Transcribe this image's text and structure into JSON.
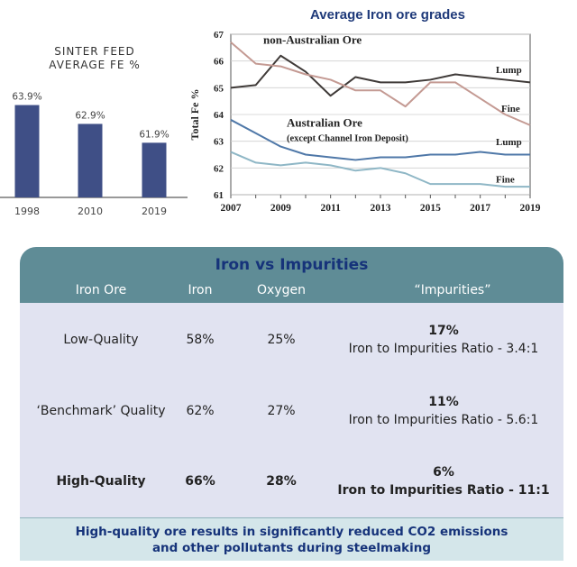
{
  "bar_chart": {
    "title_line1": "SINTER FEED",
    "title_line2": "AVERAGE FE %",
    "bar_color": "#3f4f86"
  },
  "line_chart": {
    "title": "Average Iron ore grades",
    "ylabel": "Total Fe %",
    "annotations": {
      "non_australian": "non-Australian Ore",
      "australian": "Australian Ore",
      "australian_sub": "(except Channel Iron Deposit)",
      "lump_top": "Lump",
      "fine_top": "Fine",
      "lump_bottom": "Lump",
      "fine_bottom": "Fine"
    }
  },
  "chart_data": [
    {
      "type": "bar",
      "title": "SINTER FEED AVERAGE FE %",
      "categories": [
        "1998",
        "2010",
        "2019"
      ],
      "values": [
        63.9,
        62.9,
        61.9
      ],
      "value_labels": [
        "63.9%",
        "62.9%",
        "61.9%"
      ],
      "ylim": [
        59.0,
        64.5
      ]
    },
    {
      "type": "line",
      "title": "Average Iron ore grades",
      "ylabel": "Total Fe %",
      "ylim": [
        61,
        67
      ],
      "yticks": [
        "61",
        "62",
        "63",
        "64",
        "65",
        "66",
        "67"
      ],
      "xticks": [
        "2007",
        "2009",
        "2011",
        "2013",
        "2015",
        "2017",
        "2019"
      ],
      "x": [
        2007,
        2008,
        2009,
        2010,
        2011,
        2012,
        2013,
        2014,
        2015,
        2016,
        2017,
        2018,
        2019
      ],
      "series": [
        {
          "name": "non-Australian Ore Lump",
          "color": "#3f3a38",
          "values": [
            65.0,
            65.1,
            66.2,
            65.6,
            64.7,
            65.4,
            65.2,
            65.2,
            65.3,
            65.5,
            65.4,
            65.3,
            65.2
          ]
        },
        {
          "name": "non-Australian Ore Fine",
          "color": "#c49a93",
          "values": [
            66.7,
            65.9,
            65.8,
            65.5,
            65.3,
            64.9,
            64.9,
            64.3,
            65.2,
            65.2,
            64.6,
            64.0,
            63.6
          ]
        },
        {
          "name": "Australian Ore Lump",
          "color": "#4f78a8",
          "values": [
            63.8,
            63.3,
            62.8,
            62.5,
            62.4,
            62.3,
            62.4,
            62.4,
            62.5,
            62.5,
            62.6,
            62.5,
            62.5
          ]
        },
        {
          "name": "Australian Ore Fine",
          "color": "#8fb7c6",
          "values": [
            62.6,
            62.2,
            62.1,
            62.2,
            62.1,
            61.9,
            62.0,
            61.8,
            61.4,
            61.4,
            61.4,
            61.3,
            61.3
          ]
        }
      ]
    },
    {
      "type": "table",
      "title": "Iron vs Impurities",
      "columns": [
        "Iron Ore",
        "Iron",
        "Oxygen",
        "“Impurities”"
      ],
      "rows": [
        {
          "ore": "Low-Quality",
          "iron": "58%",
          "oxygen": "25%",
          "impurities": "17%",
          "ratio": "Iron to Impurities Ratio - 3.4:1"
        },
        {
          "ore": "‘Benchmark’ Quality",
          "iron": "62%",
          "oxygen": "27%",
          "impurities": "11%",
          "ratio": "Iron to Impurities Ratio - 5.6:1"
        },
        {
          "ore": "High-Quality",
          "iron": "66%",
          "oxygen": "28%",
          "impurities": "6%",
          "ratio": "Iron to Impurities Ratio - 11:1"
        }
      ],
      "footer": "High-quality ore results in significantly reduced CO2 emissions and other pollutants during steelmaking"
    }
  ]
}
